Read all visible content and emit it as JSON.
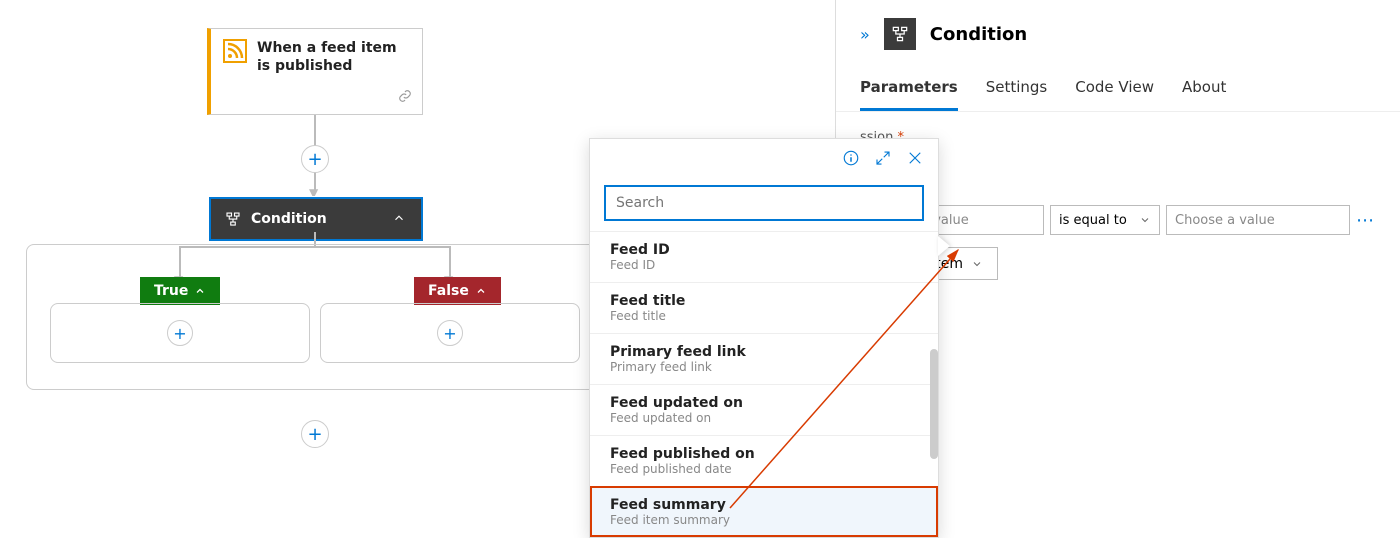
{
  "trigger": {
    "title": "When a feed item is published",
    "border_color": "#f0a000"
  },
  "condition": {
    "title": "Condition"
  },
  "branches": {
    "true_label": "True",
    "false_label": "False",
    "true_color": "#107c10",
    "false_color": "#a4262c"
  },
  "popup": {
    "search_placeholder": "Search",
    "items": [
      {
        "title": "Feed ID",
        "desc": "Feed ID"
      },
      {
        "title": "Feed title",
        "desc": "Feed title"
      },
      {
        "title": "Primary feed link",
        "desc": "Primary feed link"
      },
      {
        "title": "Feed updated on",
        "desc": "Feed updated on"
      },
      {
        "title": "Feed published on",
        "desc": "Feed published date"
      },
      {
        "title": "Feed summary",
        "desc": "Feed item summary"
      }
    ],
    "highlight_index": 5
  },
  "panel": {
    "title": "Condition",
    "tabs": [
      "Parameters",
      "Settings",
      "Code View",
      "About"
    ],
    "active_tab": 0,
    "req_label_suffix": "ssion",
    "expression": {
      "left_placeholder": "Choose a value",
      "operator": "is equal to",
      "right_placeholder": "Choose a value"
    },
    "new_item_label": "New item"
  },
  "colors": {
    "accent": "#0078d4",
    "highlight": "#d83b01"
  }
}
